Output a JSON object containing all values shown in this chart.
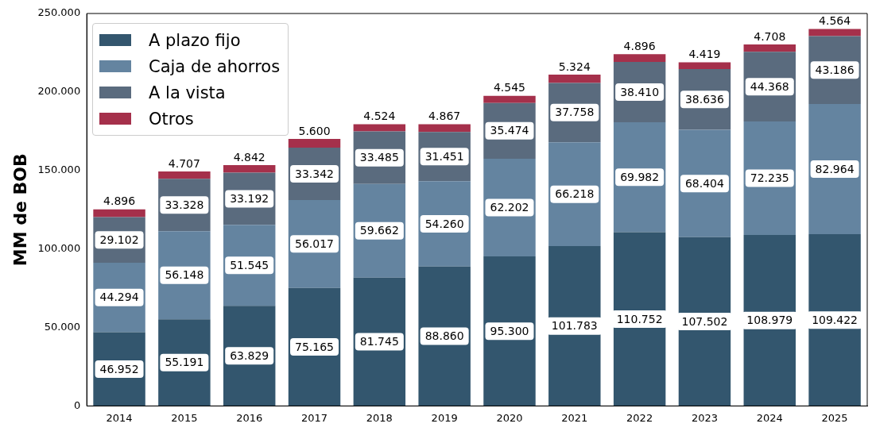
{
  "chart_data": {
    "type": "bar",
    "stacked": true,
    "ylabel": "MM de BOB",
    "categories": [
      "2014",
      "2015",
      "2016",
      "2017",
      "2018",
      "2019",
      "2020",
      "2021",
      "2022",
      "2023",
      "2024",
      "2025"
    ],
    "ylim": [
      0,
      250000
    ],
    "yticks": [
      {
        "value": 0,
        "label": "0"
      },
      {
        "value": 50000,
        "label": "50.000"
      },
      {
        "value": 100000,
        "label": "100.000"
      },
      {
        "value": 150000,
        "label": "150.000"
      },
      {
        "value": 200000,
        "label": "200.000"
      },
      {
        "value": 250000,
        "label": "250.000"
      }
    ],
    "grid": false,
    "legend": "top left",
    "series": [
      {
        "name": "A plazo fijo",
        "color": "#33566e",
        "values": [
          46952,
          55191,
          63829,
          75165,
          81745,
          88860,
          95300,
          101783,
          110752,
          107502,
          108979,
          109422
        ],
        "value_labels": [
          "46.952",
          "55.191",
          "63.829",
          "75.165",
          "81.745",
          "88.860",
          "95.300",
          "101.783",
          "110.752",
          "107.502",
          "108.979",
          "109.422"
        ]
      },
      {
        "name": "Caja de ahorros",
        "color": "#6484a0",
        "values": [
          44294,
          56148,
          51545,
          56017,
          59662,
          54260,
          62202,
          66218,
          69982,
          68404,
          72235,
          82964
        ],
        "value_labels": [
          "44.294",
          "56.148",
          "51.545",
          "56.017",
          "59.662",
          "54.260",
          "62.202",
          "66.218",
          "69.982",
          "68.404",
          "72.235",
          "82.964"
        ]
      },
      {
        "name": "A la vista",
        "color": "#5a6b7e",
        "values": [
          29102,
          33328,
          33192,
          33342,
          33485,
          31451,
          35474,
          37758,
          38410,
          38636,
          44368,
          43186
        ],
        "value_labels": [
          "29.102",
          "33.328",
          "33.192",
          "33.342",
          "33.485",
          "31.451",
          "35.474",
          "37.758",
          "38.410",
          "38.636",
          "44.368",
          "43.186"
        ]
      },
      {
        "name": "Otros",
        "color": "#a5304b",
        "values": [
          4896,
          4707,
          4842,
          5600,
          4524,
          4867,
          4545,
          5324,
          4896,
          4419,
          4708,
          4564
        ],
        "value_labels": [
          "4.896",
          "4.707",
          "4.842",
          "5.600",
          "4.524",
          "4.867",
          "4.545",
          "5.324",
          "4.896",
          "4.419",
          "4.708",
          "4.564"
        ]
      }
    ]
  }
}
